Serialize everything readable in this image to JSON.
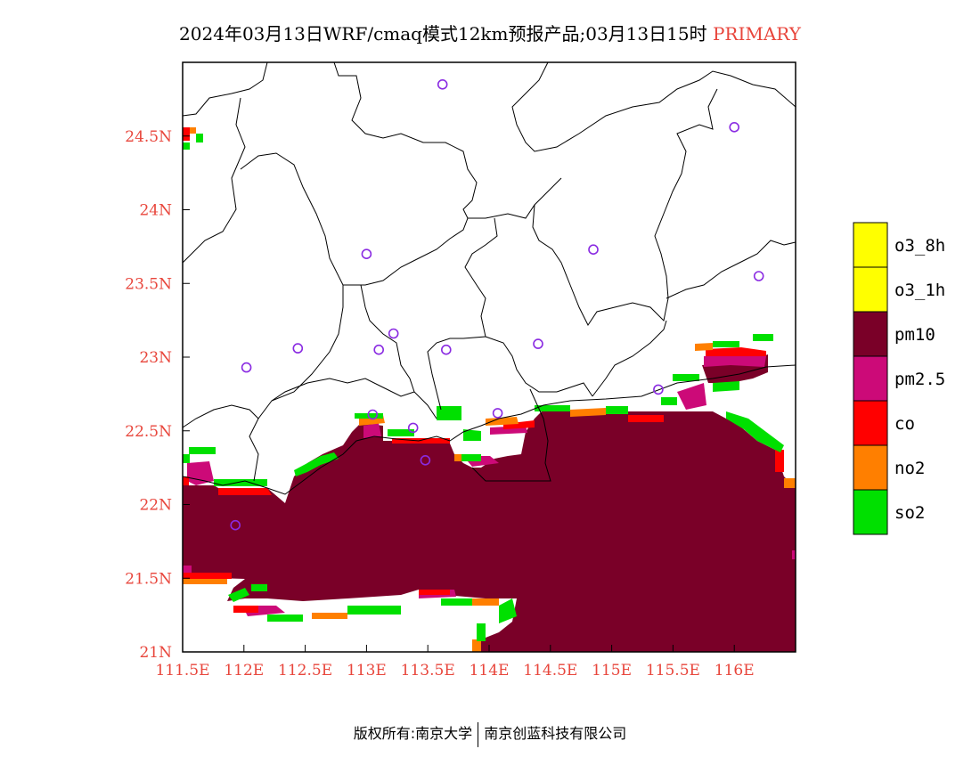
{
  "title": {
    "main": "2024年03月13日WRF/cmaq模式12km预报产品;03月13日15时",
    "tag": "PRIMARY"
  },
  "map": {
    "lon_range": [
      111.5,
      116.5
    ],
    "lat_range": [
      21.0,
      25.0
    ],
    "x_ticks": [
      {
        "lon": 111.5,
        "label": "111.5E"
      },
      {
        "lon": 112.0,
        "label": "112E"
      },
      {
        "lon": 112.5,
        "label": "112.5E"
      },
      {
        "lon": 113.0,
        "label": "113E"
      },
      {
        "lon": 113.5,
        "label": "113.5E"
      },
      {
        "lon": 114.0,
        "label": "114E"
      },
      {
        "lon": 114.5,
        "label": "114.5E"
      },
      {
        "lon": 115.0,
        "label": "115E"
      },
      {
        "lon": 115.5,
        "label": "115.5E"
      },
      {
        "lon": 116.0,
        "label": "116E"
      }
    ],
    "y_ticks": [
      {
        "lat": 21.0,
        "label": "21N"
      },
      {
        "lat": 21.5,
        "label": "21.5N"
      },
      {
        "lat": 22.0,
        "label": "22N"
      },
      {
        "lat": 22.5,
        "label": "22.5N"
      },
      {
        "lat": 23.0,
        "label": "23N"
      },
      {
        "lat": 23.5,
        "label": "23.5N"
      },
      {
        "lat": 24.0,
        "label": "24N"
      },
      {
        "lat": 24.5,
        "label": "24.5N"
      }
    ],
    "stations": [
      {
        "lon": 113.62,
        "lat": 24.85
      },
      {
        "lon": 116.0,
        "lat": 24.56
      },
      {
        "lon": 113.0,
        "lat": 23.7
      },
      {
        "lon": 114.85,
        "lat": 23.73
      },
      {
        "lon": 116.2,
        "lat": 23.55
      },
      {
        "lon": 113.22,
        "lat": 23.16
      },
      {
        "lon": 112.44,
        "lat": 23.06
      },
      {
        "lon": 113.1,
        "lat": 23.05
      },
      {
        "lon": 113.65,
        "lat": 23.05
      },
      {
        "lon": 114.4,
        "lat": 23.09
      },
      {
        "lon": 112.02,
        "lat": 22.93
      },
      {
        "lon": 115.38,
        "lat": 22.78
      },
      {
        "lon": 113.05,
        "lat": 22.61
      },
      {
        "lon": 114.07,
        "lat": 22.62
      },
      {
        "lon": 113.38,
        "lat": 22.52
      },
      {
        "lon": 113.48,
        "lat": 22.3
      },
      {
        "lon": 111.93,
        "lat": 21.86
      }
    ]
  },
  "legend": [
    {
      "label": "o3_8h",
      "color": "#ffff00"
    },
    {
      "label": "o3_1h",
      "color": "#ffff00"
    },
    {
      "label": "pm10",
      "color": "#7a0028"
    },
    {
      "label": "pm2.5",
      "color": "#cc0a78"
    },
    {
      "label": "co",
      "color": "#ff0000"
    },
    {
      "label": "no2",
      "color": "#ff7f00"
    },
    {
      "label": "so2",
      "color": "#00e000"
    }
  ],
  "colors": {
    "pm10": "#7a0028",
    "pm2.5": "#cc0a78",
    "co": "#ff0000",
    "no2": "#ff7f00",
    "so2": "#00e000",
    "station": "#8a2be2",
    "tick_label": "#e8463c"
  },
  "footer": {
    "left": "版权所有:南京大学",
    "right": "南京创蓝科技有限公司"
  }
}
